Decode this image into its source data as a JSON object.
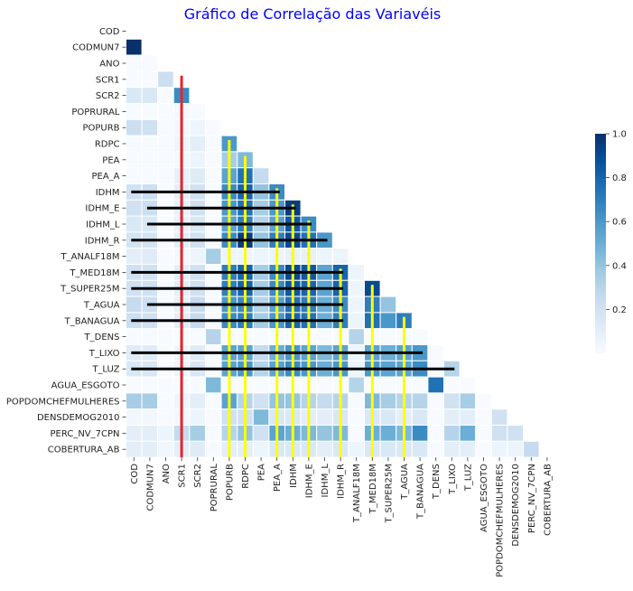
{
  "chart_data": {
    "type": "heatmap",
    "title": "Gráfico de Correlação das Variavéis",
    "title_color": "#0000ff",
    "variables": [
      "COD",
      "CODMUN7",
      "ANO",
      "SCR1",
      "SCR2",
      "POPRURAL",
      "POPURB",
      "RDPC",
      "PEA",
      "PEA_A",
      "IDHM",
      "IDHM_E",
      "IDHM_L",
      "IDHM_R",
      "T_ANALF18M",
      "T_MED18M",
      "T_SUPER25M",
      "T_AGUA",
      "T_BANAGUA",
      "T_DENS",
      "T_LIXO",
      "T_LUZ",
      "AGUA_ESGOTO",
      "POPDOMCHEFMULHERES",
      "DENSDEMOG2010",
      "PERC_NV_7CPN",
      "COBERTURA_AB"
    ],
    "colormap": "Blues",
    "colorbar": {
      "min": 0,
      "max": 1.0,
      "ticks": [
        0.2,
        0.4,
        0.6,
        0.8,
        1.0
      ],
      "tick_labels": [
        "0.2",
        "0.4",
        "0.6",
        "0.8",
        "1.0"
      ]
    },
    "mask": "upper-triangle",
    "values": [
      [],
      [
        1.0
      ],
      [
        0,
        0
      ],
      [
        0,
        0,
        0.22
      ],
      [
        0.15,
        0.15,
        0,
        0.65
      ],
      [
        0,
        0,
        0,
        0.02,
        0
      ],
      [
        0.22,
        0.2,
        0,
        0.03,
        0.05,
        0
      ],
      [
        0,
        0,
        0,
        0.05,
        0.1,
        0,
        0.6
      ],
      [
        0,
        0,
        0,
        0.02,
        0.05,
        0,
        0.35,
        0.45
      ],
      [
        0,
        0,
        0,
        0.08,
        0.12,
        0,
        0.55,
        0.75,
        0.25
      ],
      [
        0.2,
        0.22,
        0,
        0.1,
        0.2,
        0,
        0.65,
        0.8,
        0.4,
        0.65
      ],
      [
        0.2,
        0.22,
        0,
        0.08,
        0.2,
        0,
        0.6,
        0.75,
        0.35,
        0.6,
        0.95
      ],
      [
        0.15,
        0.15,
        0,
        0.08,
        0.15,
        0,
        0.55,
        0.7,
        0.3,
        0.55,
        0.85,
        0.65
      ],
      [
        0.18,
        0.18,
        0,
        0.1,
        0.2,
        0,
        0.65,
        0.95,
        0.4,
        0.7,
        0.9,
        0.75,
        0.6
      ],
      [
        0.1,
        0.12,
        0,
        0.02,
        0.05,
        0.35,
        0.05,
        0.05,
        0.05,
        0.05,
        0.08,
        0.08,
        0.05,
        0.05
      ],
      [
        0.2,
        0.2,
        0,
        0.1,
        0.2,
        0,
        0.7,
        0.8,
        0.35,
        0.65,
        0.9,
        0.85,
        0.55,
        0.8,
        0.05
      ],
      [
        0.2,
        0.2,
        0,
        0.1,
        0.2,
        0,
        0.7,
        0.8,
        0.35,
        0.65,
        0.85,
        0.8,
        0.55,
        0.8,
        0.05,
        0.9
      ],
      [
        0.25,
        0.22,
        0,
        0.08,
        0.25,
        0,
        0.6,
        0.65,
        0.3,
        0.55,
        0.75,
        0.7,
        0.5,
        0.65,
        0.05,
        0.7,
        0.4
      ],
      [
        0.22,
        0.2,
        0,
        0.1,
        0.25,
        0,
        0.65,
        0.7,
        0.35,
        0.6,
        0.8,
        0.75,
        0.5,
        0.7,
        0.05,
        0.75,
        0.6,
        0.7
      ],
      [
        0,
        0,
        0,
        0,
        0,
        0.3,
        0,
        0,
        0,
        0,
        0,
        0,
        0,
        0,
        0.3,
        0,
        0,
        0,
        0
      ],
      [
        0.12,
        0.12,
        0,
        0.05,
        0.12,
        0,
        0.55,
        0.55,
        0.25,
        0.5,
        0.6,
        0.55,
        0.45,
        0.55,
        0.05,
        0.55,
        0.5,
        0.55,
        0.6,
        0
      ],
      [
        0.15,
        0.15,
        0,
        0.05,
        0.15,
        0,
        0.55,
        0.6,
        0.3,
        0.55,
        0.65,
        0.6,
        0.5,
        0.6,
        0.05,
        0.6,
        0.55,
        0.55,
        0.65,
        0,
        0.3
      ],
      [
        0,
        0,
        0,
        0,
        0,
        0.45,
        0,
        0,
        0,
        0,
        0,
        0,
        0,
        0,
        0.3,
        0,
        0,
        0,
        0,
        0.75,
        0,
        0
      ],
      [
        0.35,
        0.35,
        0,
        0.05,
        0.1,
        0,
        0.55,
        0.3,
        0.2,
        0.4,
        0.4,
        0.3,
        0.25,
        0.3,
        0,
        0.45,
        0.35,
        0.3,
        0.3,
        0,
        0.2,
        0.35,
        0
      ],
      [
        0.03,
        0.03,
        0,
        0.03,
        0.05,
        0,
        0.2,
        0.2,
        0.45,
        0.15,
        0.15,
        0.1,
        0.1,
        0.15,
        0,
        0.15,
        0.15,
        0.1,
        0.15,
        0,
        0.1,
        0.1,
        0,
        0.2
      ],
      [
        0.1,
        0.1,
        0.05,
        0.25,
        0.35,
        0,
        0.3,
        0.4,
        0.2,
        0.55,
        0.5,
        0.45,
        0.4,
        0.45,
        0,
        0.5,
        0.5,
        0.45,
        0.65,
        0,
        0.3,
        0.5,
        0,
        0.2,
        0.2
      ],
      [
        0.1,
        0.1,
        0.03,
        0.1,
        0.12,
        0,
        0.1,
        0.1,
        0.05,
        0.15,
        0.15,
        0.15,
        0.1,
        0.15,
        0.05,
        0.15,
        0.15,
        0.15,
        0.15,
        0,
        0.1,
        0.1,
        0,
        0.05,
        0.05,
        0.25
      ]
    ],
    "annotation_lines": {
      "red": {
        "color": "#e8232b",
        "column": "SCR1",
        "from_row": "SCR1",
        "to_row": "COBERTURA_AB"
      },
      "yellow": [
        {
          "column": "POPURB",
          "from_row": "RDPC"
        },
        {
          "column": "RDPC",
          "from_row": "PEA"
        },
        {
          "column": "PEA_A",
          "from_row": "IDHM"
        },
        {
          "column": "IDHM",
          "from_row": "IDHM_E"
        },
        {
          "column": "IDHM_E",
          "from_row": "IDHM_L"
        },
        {
          "column": "IDHM_R",
          "from_row": "T_MED18M"
        },
        {
          "column": "T_MED18M",
          "from_row": "T_SUPER25M"
        },
        {
          "column": "T_AGUA",
          "from_row": "T_BANAGUA"
        }
      ],
      "yellow_color": "#ffff00",
      "yellow_to_row": "COBERTURA_AB",
      "black": [
        {
          "row": "IDHM",
          "from_col": "COD",
          "to_col": "PEA_A"
        },
        {
          "row": "IDHM_E",
          "from_col": "CODMUN7",
          "to_col": "IDHM"
        },
        {
          "row": "IDHM_L",
          "from_col": "CODMUN7",
          "to_col": "IDHM_E"
        },
        {
          "row": "IDHM_R",
          "from_col": "COD",
          "to_col": "IDHM_L"
        },
        {
          "row": "T_MED18M",
          "from_col": "COD",
          "to_col": "IDHM_R"
        },
        {
          "row": "T_SUPER25M",
          "from_col": "COD",
          "to_col": "IDHM_R"
        },
        {
          "row": "T_AGUA",
          "from_col": "CODMUN7",
          "to_col": "IDHM_R"
        },
        {
          "row": "T_BANAGUA",
          "from_col": "COD",
          "to_col": "IDHM_R"
        },
        {
          "row": "T_LIXO",
          "from_col": "COD",
          "to_col": "T_BANAGUA"
        },
        {
          "row": "T_LUZ",
          "from_col": "COD",
          "to_col": "T_LIXO"
        }
      ],
      "black_color": "#000000"
    }
  }
}
